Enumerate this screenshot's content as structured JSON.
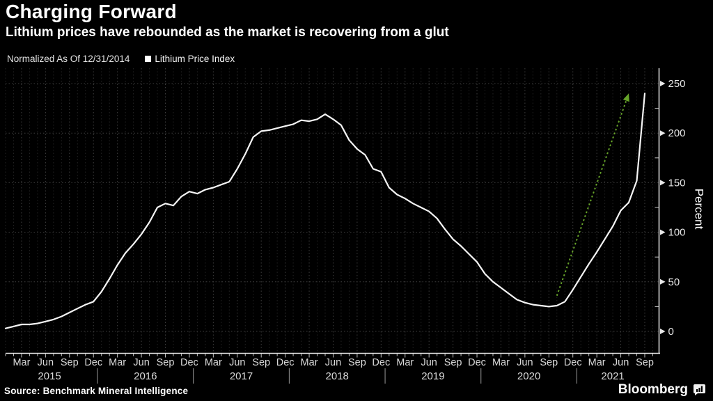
{
  "header": {
    "title": "Charging Forward",
    "subtitle": "Lithium prices have rebounded as the market is recovering from a glut",
    "legend_note": "Normalized As Of 12/31/2014",
    "legend_series": "Lithium Price Index"
  },
  "footer": {
    "source": "Source: Benchmark Mineral Intelligence",
    "brand": "Bloomberg"
  },
  "colors": {
    "background": "#000000",
    "line": "#f5f5f5",
    "arrow": "#66a329",
    "axis": "#e8e8e8",
    "grid_major": "#3e3e3e",
    "grid_minor": "#232323",
    "tick_label": "#dadada"
  },
  "chart_data": {
    "type": "line",
    "title": "Charging Forward",
    "subtitle": "Lithium prices have rebounded as the market is recovering from a glut",
    "series_name": "Lithium Price Index",
    "normalized_note": "Normalized As Of 12/31/2014",
    "ylabel": "Percent",
    "ylim": [
      0,
      260
    ],
    "y_major_ticks": [
      0,
      50,
      100,
      150,
      200,
      250
    ],
    "y_minor_step": 25,
    "grid": "dotted",
    "legend_position": "top-left",
    "frequency": "monthly",
    "start_month": "2015-01",
    "end_month": "2021-09",
    "values": [
      3,
      5,
      7,
      7,
      8,
      10,
      12,
      15,
      19,
      23,
      27,
      30,
      40,
      53,
      67,
      79,
      88,
      98,
      110,
      125,
      129,
      127,
      136,
      141,
      139,
      143,
      145,
      148,
      151,
      164,
      179,
      196,
      202,
      203,
      205,
      207,
      209,
      213,
      212,
      214,
      219,
      214,
      208,
      193,
      184,
      178,
      164,
      161,
      145,
      138,
      134,
      129,
      125,
      121,
      114,
      103,
      93,
      86,
      78,
      70,
      58,
      50,
      44,
      38,
      32,
      29,
      27,
      26,
      25,
      26,
      30,
      42,
      55,
      68,
      80,
      93,
      106,
      122,
      130,
      152,
      240
    ],
    "x_month_label_cycle": [
      "Mar",
      "Jun",
      "Sep",
      "Dec"
    ],
    "x_first_labeled_index": 2,
    "x_label_step": 3,
    "years": [
      {
        "label": "2015",
        "start_index": 0,
        "end_index": 11
      },
      {
        "label": "2016",
        "start_index": 12,
        "end_index": 23
      },
      {
        "label": "2017",
        "start_index": 24,
        "end_index": 35
      },
      {
        "label": "2018",
        "start_index": 36,
        "end_index": 47
      },
      {
        "label": "2019",
        "start_index": 48,
        "end_index": 59
      },
      {
        "label": "2020",
        "start_index": 60,
        "end_index": 71
      },
      {
        "label": "2021",
        "start_index": 72,
        "end_index": 80
      }
    ],
    "annotation_arrow": {
      "style": "dotted-green",
      "from": {
        "month_index": 69,
        "value": 36
      },
      "to": {
        "month_index": 78,
        "value": 240
      }
    }
  }
}
